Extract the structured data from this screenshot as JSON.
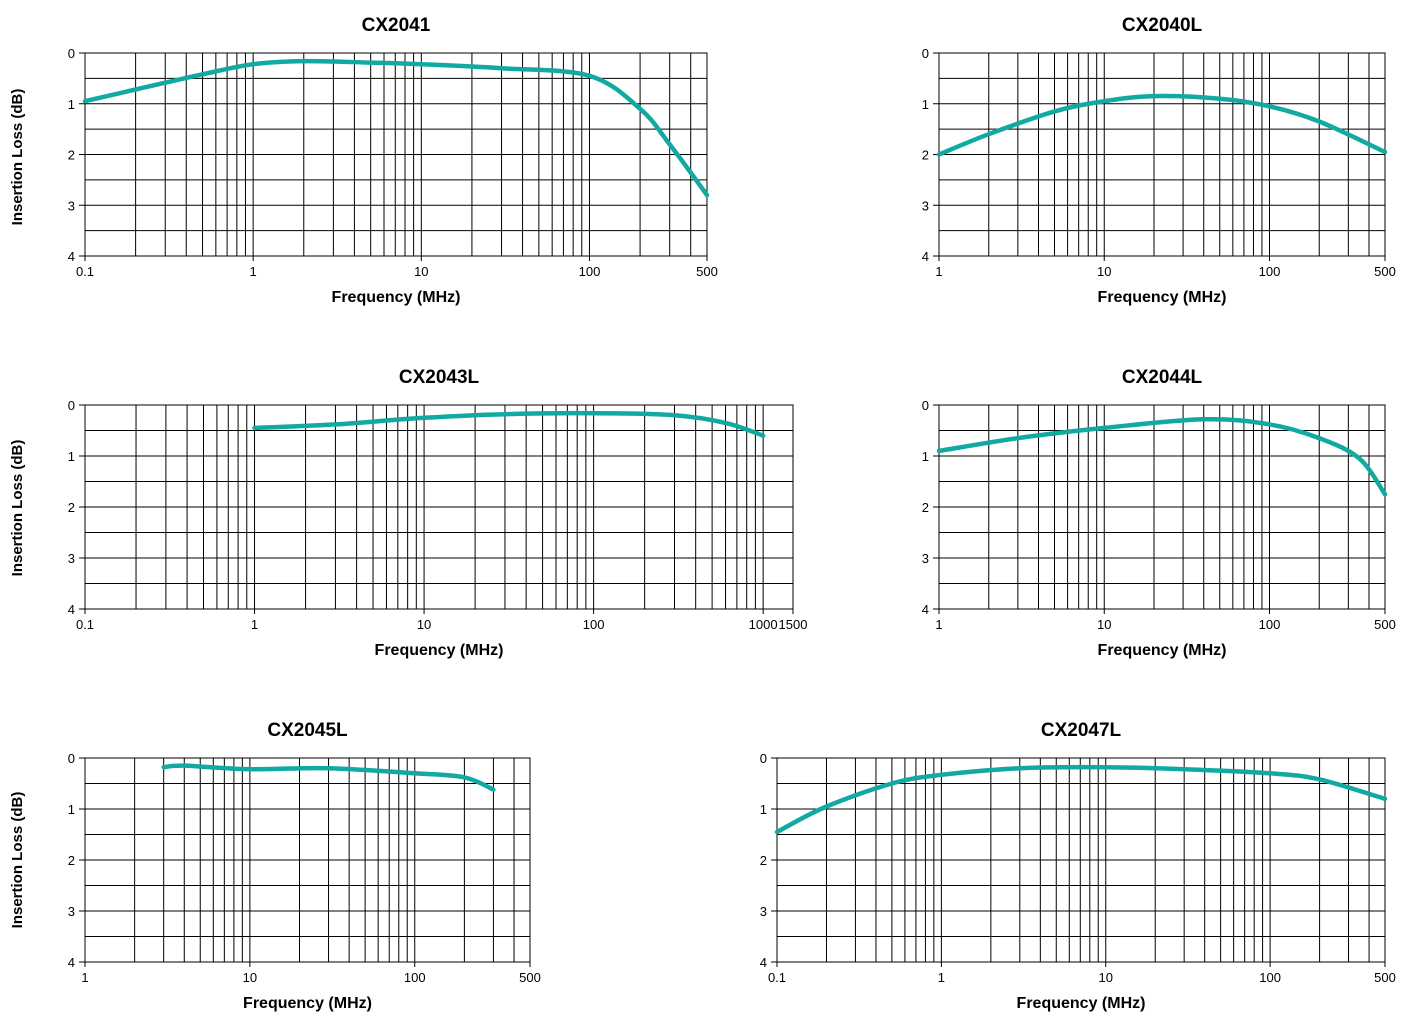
{
  "page": {
    "ylabel_row1": "Insertion Loss (dB)",
    "ylabel_row2": "Insertion Loss (dB)",
    "ylabel_row3": "Insertion Loss (dB)"
  },
  "colors": {
    "curve": "#12a9a3",
    "grid": "#000000",
    "background": "#ffffff"
  },
  "chart_data": [
    {
      "type": "line",
      "title": "CX2041",
      "xlabel": "Frequency (MHz)",
      "ylabel": "Insertion Loss (dB)",
      "xscale": "log",
      "xlim": [
        0.1,
        500
      ],
      "ylim": [
        0,
        4
      ],
      "y_inverted": true,
      "x_tick_labels": [
        "0.1",
        "1",
        "10",
        "100",
        "500"
      ],
      "x_tick_values": [
        0.1,
        1,
        10,
        100,
        500
      ],
      "y_tick_labels": [
        "0",
        "1",
        "2",
        "3",
        "4"
      ],
      "grid": true,
      "series": [
        {
          "x": [
            0.1,
            0.2,
            0.5,
            1,
            2,
            5,
            10,
            30,
            100,
            200,
            300,
            500
          ],
          "y": [
            0.95,
            0.72,
            0.42,
            0.22,
            0.16,
            0.19,
            0.22,
            0.3,
            0.45,
            1.1,
            1.8,
            2.8
          ]
        }
      ]
    },
    {
      "type": "line",
      "title": "CX2040L",
      "xlabel": "Frequency (MHz)",
      "ylabel": "Insertion Loss (dB)",
      "xscale": "log",
      "xlim": [
        1,
        500
      ],
      "ylim": [
        0,
        4
      ],
      "y_inverted": true,
      "x_tick_labels": [
        "1",
        "10",
        "100",
        "500"
      ],
      "x_tick_values": [
        1,
        10,
        100,
        500
      ],
      "y_tick_labels": [
        "0",
        "1",
        "2",
        "3",
        "4"
      ],
      "grid": true,
      "series": [
        {
          "x": [
            1,
            2,
            5,
            10,
            20,
            50,
            100,
            200,
            500
          ],
          "y": [
            2.0,
            1.6,
            1.15,
            0.95,
            0.85,
            0.9,
            1.05,
            1.35,
            1.95
          ]
        }
      ]
    },
    {
      "type": "line",
      "title": "CX2043L",
      "xlabel": "Frequency (MHz)",
      "ylabel": "Insertion Loss (dB)",
      "xscale": "log",
      "xlim": [
        0.1,
        1500
      ],
      "ylim": [
        0,
        4
      ],
      "y_inverted": true,
      "x_tick_labels": [
        "0.1",
        "1",
        "10",
        "100",
        "1000",
        "1500"
      ],
      "x_tick_values": [
        0.1,
        1,
        10,
        100,
        1000,
        1500
      ],
      "y_tick_labels": [
        "0",
        "1",
        "2",
        "3",
        "4"
      ],
      "grid": true,
      "series": [
        {
          "x": [
            1,
            3,
            10,
            30,
            100,
            300,
            600,
            1000
          ],
          "y": [
            0.45,
            0.38,
            0.25,
            0.18,
            0.16,
            0.2,
            0.35,
            0.6
          ]
        }
      ]
    },
    {
      "type": "line",
      "title": "CX2044L",
      "xlabel": "Frequency (MHz)",
      "ylabel": "Insertion Loss (dB)",
      "xscale": "log",
      "xlim": [
        1,
        500
      ],
      "ylim": [
        0,
        4
      ],
      "y_inverted": true,
      "x_tick_labels": [
        "1",
        "10",
        "100",
        "500"
      ],
      "x_tick_values": [
        1,
        10,
        100,
        500
      ],
      "y_tick_labels": [
        "0",
        "1",
        "2",
        "3",
        "4"
      ],
      "grid": true,
      "series": [
        {
          "x": [
            1,
            3,
            10,
            40,
            100,
            200,
            350,
            500
          ],
          "y": [
            0.9,
            0.65,
            0.45,
            0.28,
            0.38,
            0.65,
            1.05,
            1.75
          ]
        }
      ]
    },
    {
      "type": "line",
      "title": "CX2045L",
      "xlabel": "Frequency (MHz)",
      "ylabel": "Insertion Loss (dB)",
      "xscale": "log",
      "xlim": [
        1,
        500
      ],
      "ylim": [
        0,
        4
      ],
      "y_inverted": true,
      "x_tick_labels": [
        "1",
        "10",
        "100",
        "500"
      ],
      "x_tick_values": [
        1,
        10,
        100,
        500
      ],
      "y_tick_labels": [
        "0",
        "1",
        "2",
        "3",
        "4"
      ],
      "grid": true,
      "series": [
        {
          "x": [
            3,
            4,
            10,
            30,
            100,
            200,
            300
          ],
          "y": [
            0.18,
            0.15,
            0.22,
            0.2,
            0.3,
            0.38,
            0.62
          ]
        }
      ]
    },
    {
      "type": "line",
      "title": "CX2047L",
      "xlabel": "Frequency (MHz)",
      "ylabel": "Insertion Loss (dB)",
      "xscale": "log",
      "xlim": [
        0.1,
        500
      ],
      "ylim": [
        0,
        4
      ],
      "y_inverted": true,
      "x_tick_labels": [
        "0.1",
        "1",
        "10",
        "100",
        "500"
      ],
      "x_tick_values": [
        0.1,
        1,
        10,
        100,
        500
      ],
      "y_tick_labels": [
        "0",
        "1",
        "2",
        "3",
        "4"
      ],
      "grid": true,
      "series": [
        {
          "x": [
            0.1,
            0.2,
            0.5,
            1,
            3,
            10,
            30,
            100,
            200,
            500
          ],
          "y": [
            1.45,
            0.95,
            0.5,
            0.33,
            0.2,
            0.18,
            0.22,
            0.3,
            0.42,
            0.8
          ]
        }
      ]
    }
  ]
}
